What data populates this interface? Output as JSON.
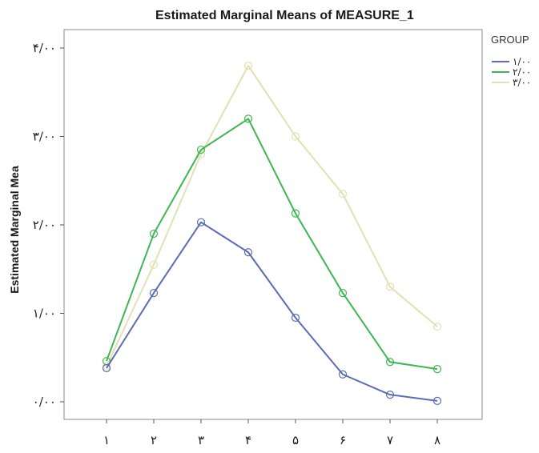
{
  "chart_data": {
    "type": "line",
    "title": "Estimated Marginal Means of MEASURE_1",
    "xlabel": "",
    "ylabel": "Estimated Marginal Mea",
    "categories": [
      "۱",
      "۲",
      "۳",
      "۴",
      "۵",
      "۶",
      "۷",
      "۸"
    ],
    "x": [
      1,
      2,
      3,
      4,
      5,
      6,
      7,
      8
    ],
    "yticks": [
      0,
      1,
      2,
      3,
      4
    ],
    "ytick_labels": [
      "۰/۰۰",
      "۱/۰۰",
      "۲/۰۰",
      "۳/۰۰",
      "۴/۰۰"
    ],
    "ylim": [
      -0.2,
      4.1
    ],
    "grid": false,
    "legend": {
      "title": "GROUP",
      "position": "right"
    },
    "series": [
      {
        "name": "۱/۰۰",
        "color": "#5b6bb5",
        "values": [
          0.38,
          1.23,
          2.03,
          1.69,
          0.95,
          0.31,
          0.08,
          0.01
        ]
      },
      {
        "name": "۲/۰۰",
        "color": "#3cb850",
        "values": [
          0.46,
          1.9,
          2.85,
          3.2,
          2.13,
          1.23,
          0.45,
          0.37
        ]
      },
      {
        "name": "۳/۰۰",
        "color": "#e2e0b4",
        "values": [
          0.4,
          1.55,
          2.8,
          3.8,
          3.0,
          2.35,
          1.3,
          0.85
        ]
      }
    ]
  }
}
